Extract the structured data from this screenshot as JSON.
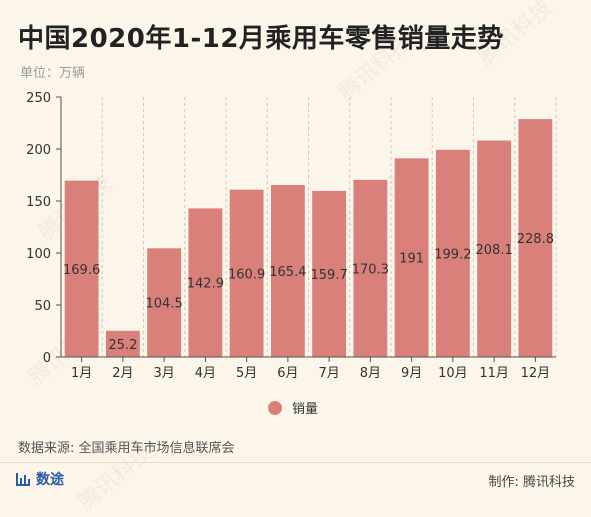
{
  "title": "中国2020年1-12月乘用车零售销量走势",
  "unit": "单位：万辆",
  "source": "数据来源: 全国乘用车市场信息联席会",
  "brand": "数途",
  "maker": "制作: 腾讯科技",
  "watermark": "腾讯科技",
  "colors": {
    "bar": "#d9807a",
    "axis": "#555555",
    "grid": "#cfc8bb",
    "background": "#fbf5ea",
    "brand": "#2b5aa8"
  },
  "chart_data": {
    "type": "bar",
    "categories": [
      "1月",
      "2月",
      "3月",
      "4月",
      "5月",
      "6月",
      "7月",
      "8月",
      "9月",
      "10月",
      "11月",
      "12月"
    ],
    "series": [
      {
        "name": "销量",
        "values": [
          169.6,
          25.2,
          104.5,
          142.9,
          160.9,
          165.4,
          159.7,
          170.3,
          191,
          199.2,
          208.1,
          228.8
        ]
      }
    ],
    "ylim": [
      0,
      250
    ],
    "yticks": [
      0,
      50,
      100,
      150,
      200,
      250
    ],
    "xlabel": "",
    "ylabel": "",
    "grid": "vertical dashed",
    "legend": "bottom-center",
    "data_labels": "inside-middle"
  }
}
